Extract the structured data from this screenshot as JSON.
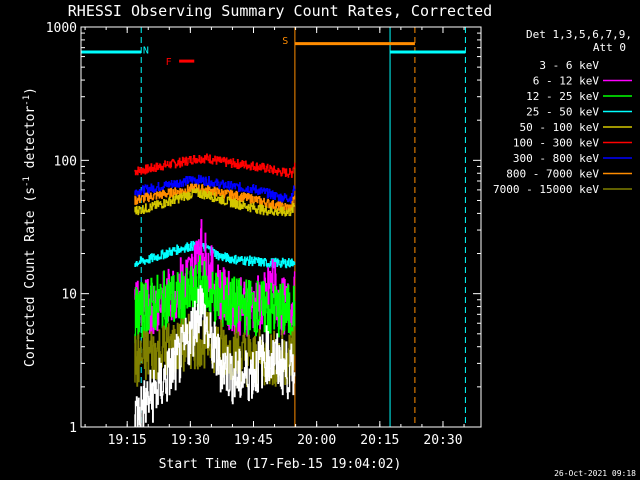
{
  "chart_data": {
    "type": "line",
    "title": "RHESSI Observing Summary Count Rates, Corrected",
    "xlabel": "Start Time (17-Feb-15 19:04:02)",
    "ylabel": "Corrected Count Rate (s⁻¹ detector⁻¹)",
    "ylabel_parts": [
      "Corrected Count Rate (s",
      "-1",
      " detector",
      "-1",
      ")"
    ],
    "y_scale": "log",
    "ylim": [
      1,
      1000
    ],
    "xlim_minutes_after_start": [
      0,
      95
    ],
    "x_ticks": [
      {
        "label": "19:15",
        "t": 10.97
      },
      {
        "label": "19:30",
        "t": 25.97
      },
      {
        "label": "19:45",
        "t": 40.97
      },
      {
        "label": "20:00",
        "t": 55.97
      },
      {
        "label": "20:15",
        "t": 70.97
      },
      {
        "label": "20:30",
        "t": 85.97
      }
    ],
    "y_ticks": [
      {
        "label": "1",
        "v": 1
      },
      {
        "label": "10",
        "v": 10
      },
      {
        "label": "100",
        "v": 100
      },
      {
        "label": "1000",
        "v": 1000
      }
    ],
    "legend": {
      "header": [
        "Det 1,3,5,6,7,9,",
        "Att 0"
      ],
      "placement": "right",
      "entries": [
        {
          "label": "3 - 6 keV",
          "color": "#000000"
        },
        {
          "label": "6 - 12 keV",
          "color": "#ff00ff"
        },
        {
          "label": "12 - 25 keV",
          "color": "#00ff00"
        },
        {
          "label": "25 - 50 keV",
          "color": "#00ffff"
        },
        {
          "label": "50 - 100 keV",
          "color": "#d4c800"
        },
        {
          "label": "100 - 300 keV",
          "color": "#ff0000"
        },
        {
          "label": "300 - 800 keV",
          "color": "#0000ff"
        },
        {
          "label": "800 - 7000 keV",
          "color": "#ff8c00"
        },
        {
          "label": "7000 - 15000 keV",
          "color": "#808000"
        }
      ]
    },
    "series": [
      {
        "color": "#ff0000",
        "t_start": 12.7,
        "t_end": 50.8,
        "points": [
          [
            12.7,
            83
          ],
          [
            16,
            86
          ],
          [
            20,
            92
          ],
          [
            24,
            97
          ],
          [
            27,
            103
          ],
          [
            30,
            104
          ],
          [
            33,
            98
          ],
          [
            37,
            94
          ],
          [
            41,
            91
          ],
          [
            44,
            87
          ],
          [
            47,
            82
          ],
          [
            50,
            80
          ],
          [
            50.8,
            97
          ]
        ]
      },
      {
        "color": "#0000ff",
        "t_start": 12.7,
        "t_end": 50.8,
        "points": [
          [
            12.7,
            58
          ],
          [
            16,
            61
          ],
          [
            20,
            65
          ],
          [
            24,
            69
          ],
          [
            27,
            72
          ],
          [
            30,
            70
          ],
          [
            33,
            66
          ],
          [
            37,
            63
          ],
          [
            41,
            61
          ],
          [
            44,
            57
          ],
          [
            47,
            53
          ],
          [
            50,
            52
          ],
          [
            50.8,
            66
          ]
        ]
      },
      {
        "color": "#ff8c00",
        "t_start": 12.7,
        "t_end": 50.8,
        "points": [
          [
            12.7,
            50
          ],
          [
            16,
            53
          ],
          [
            20,
            56
          ],
          [
            24,
            59
          ],
          [
            27,
            62
          ],
          [
            30,
            60
          ],
          [
            33,
            57
          ],
          [
            37,
            54
          ],
          [
            41,
            51
          ],
          [
            44,
            48
          ],
          [
            47,
            45
          ],
          [
            50,
            44
          ],
          [
            50.8,
            55
          ]
        ]
      },
      {
        "color": "#d4c800",
        "t_start": 12.7,
        "t_end": 50.8,
        "points": [
          [
            12.7,
            42
          ],
          [
            16,
            44
          ],
          [
            20,
            48
          ],
          [
            24,
            53
          ],
          [
            27,
            57
          ],
          [
            30,
            55
          ],
          [
            33,
            51
          ],
          [
            37,
            47
          ],
          [
            41,
            44
          ],
          [
            44,
            42
          ],
          [
            47,
            41
          ],
          [
            50,
            41
          ],
          [
            50.8,
            47
          ]
        ]
      },
      {
        "color": "#00ffff",
        "t_start": 12.7,
        "t_end": 50.8,
        "points": [
          [
            12.7,
            17
          ],
          [
            16,
            18
          ],
          [
            20,
            20
          ],
          [
            24,
            22
          ],
          [
            27,
            23
          ],
          [
            30,
            22
          ],
          [
            33,
            19
          ],
          [
            37,
            18
          ],
          [
            41,
            17.5
          ],
          [
            44,
            17
          ],
          [
            47,
            17
          ],
          [
            50,
            17
          ],
          [
            50.8,
            18
          ]
        ]
      },
      {
        "color": "#ff00ff",
        "t_start": 12.7,
        "t_end": 50.8,
        "points": [
          [
            12.7,
            8
          ],
          [
            16,
            8
          ],
          [
            20,
            9
          ],
          [
            24,
            12
          ],
          [
            27,
            15
          ],
          [
            28,
            26
          ],
          [
            30,
            16
          ],
          [
            33,
            10
          ],
          [
            37,
            8
          ],
          [
            41,
            8
          ],
          [
            44,
            9
          ],
          [
            45.5,
            13
          ],
          [
            47,
            8
          ],
          [
            50,
            8
          ],
          [
            50.8,
            9
          ]
        ]
      },
      {
        "color": "#00ff00",
        "t_start": 12.7,
        "t_end": 50.8,
        "points": [
          [
            12.7,
            7
          ],
          [
            16,
            8
          ],
          [
            20,
            9
          ],
          [
            24,
            9
          ],
          [
            27,
            10
          ],
          [
            28.5,
            12
          ],
          [
            30,
            10
          ],
          [
            33,
            9
          ],
          [
            37,
            8
          ],
          [
            41,
            8
          ],
          [
            44,
            7.5
          ],
          [
            47,
            7.5
          ],
          [
            50,
            7
          ],
          [
            50.8,
            8
          ]
        ]
      },
      {
        "color": "#808000",
        "t_start": 12.7,
        "t_end": 50.8,
        "points": [
          [
            12.7,
            3
          ],
          [
            16,
            3.5
          ],
          [
            20,
            3.8
          ],
          [
            24,
            4
          ],
          [
            27,
            4.5
          ],
          [
            30,
            4.5
          ],
          [
            33,
            4
          ],
          [
            37,
            3.5
          ],
          [
            41,
            3.2
          ],
          [
            44,
            3.3
          ],
          [
            47,
            3.2
          ],
          [
            50,
            3.5
          ],
          [
            50.8,
            4
          ]
        ]
      },
      {
        "color": "#000000",
        "t_start": 12.7,
        "t_end": 50.8,
        "points": [
          [
            12.7,
            1.2
          ],
          [
            16,
            1.6
          ],
          [
            20,
            2.3
          ],
          [
            24,
            3.5
          ],
          [
            27,
            6
          ],
          [
            28.3,
            9
          ],
          [
            30,
            5
          ],
          [
            33,
            3
          ],
          [
            37,
            2.3
          ],
          [
            41,
            2.6
          ],
          [
            44,
            3.5
          ],
          [
            47,
            3
          ],
          [
            50,
            2.5
          ],
          [
            50.8,
            3
          ]
        ]
      }
    ],
    "annotations": {
      "vertical_lines": [
        {
          "t": 0.0,
          "color": "#00ffff",
          "style": "solid"
        },
        {
          "t": 14.3,
          "color": "#00ffff",
          "style": "dashed"
        },
        {
          "t": 50.8,
          "color": "#ff8c00",
          "style": "solid"
        },
        {
          "t": 73.4,
          "color": "#00ffff",
          "style": "solid"
        },
        {
          "t": 79.3,
          "color": "#ff8c00",
          "style": "dashed"
        },
        {
          "t": 91.3,
          "color": "#00ffff",
          "style": "dashed"
        }
      ],
      "horizontal_bars": [
        {
          "t0": 0.0,
          "t1": 14.3,
          "value": 650,
          "color": "#00ffff"
        },
        {
          "t0": 73.4,
          "t1": 91.3,
          "value": 650,
          "color": "#00ffff"
        },
        {
          "t0": 50.8,
          "t1": 79.3,
          "value": 750,
          "color": "#ff8c00"
        },
        {
          "t0": 23.3,
          "t1": 26.9,
          "value": 555,
          "color": "#ff0000"
        }
      ],
      "labels": [
        {
          "text": "N",
          "t": 15.4,
          "value": 680,
          "color": "#00ffff"
        },
        {
          "text": "S",
          "t": 48.5,
          "value": 800,
          "color": "#ff8c00"
        },
        {
          "text": "F",
          "t": 20.8,
          "value": 555,
          "color": "#ff0000"
        }
      ]
    },
    "grid": false
  },
  "footer_timestamp": "26-Oct-2021 09:18"
}
